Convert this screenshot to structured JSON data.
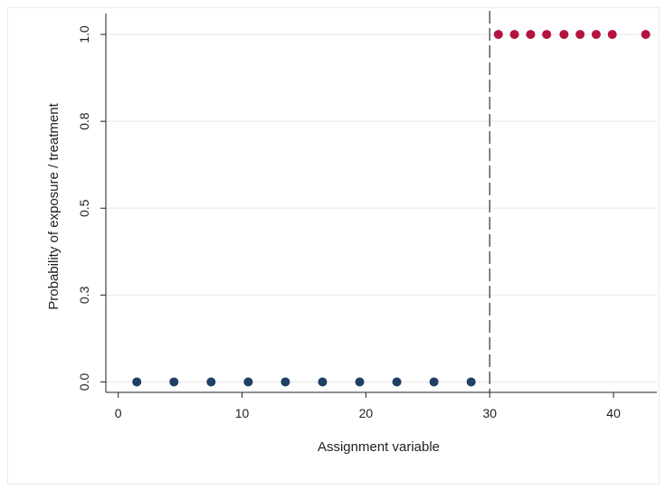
{
  "chart_data": {
    "type": "scatter",
    "title": "",
    "xlabel": "Assignment variable",
    "ylabel": "Probability of exposure / treatment",
    "xlim": [
      -1,
      43.5
    ],
    "ylim": [
      -0.03,
      1.06
    ],
    "xticks": [
      0,
      10,
      20,
      30,
      40
    ],
    "xtick_labels": [
      "0",
      "10",
      "20",
      "30",
      "40"
    ],
    "yticks": [
      0.0,
      0.25,
      0.5,
      0.75,
      1.0
    ],
    "ytick_labels": [
      "0.0",
      "0.3",
      "0.5",
      "0.8",
      "1.0"
    ],
    "grid": "horizontal",
    "cutoff": 30,
    "series": [
      {
        "color": "#1f3f66",
        "points": [
          {
            "x": 1.5,
            "y": 0
          },
          {
            "x": 4.5,
            "y": 0
          },
          {
            "x": 7.5,
            "y": 0
          },
          {
            "x": 10.5,
            "y": 0
          },
          {
            "x": 13.5,
            "y": 0
          },
          {
            "x": 16.5,
            "y": 0
          },
          {
            "x": 19.5,
            "y": 0
          },
          {
            "x": 22.5,
            "y": 0
          },
          {
            "x": 25.5,
            "y": 0
          },
          {
            "x": 28.5,
            "y": 0
          }
        ]
      },
      {
        "color": "#b5123f",
        "points": [
          {
            "x": 30.7,
            "y": 1
          },
          {
            "x": 32.0,
            "y": 1
          },
          {
            "x": 33.3,
            "y": 1
          },
          {
            "x": 34.6,
            "y": 1
          },
          {
            "x": 36.0,
            "y": 1
          },
          {
            "x": 37.3,
            "y": 1
          },
          {
            "x": 38.6,
            "y": 1
          },
          {
            "x": 39.9,
            "y": 1
          },
          {
            "x": 42.6,
            "y": 1
          }
        ]
      }
    ]
  }
}
